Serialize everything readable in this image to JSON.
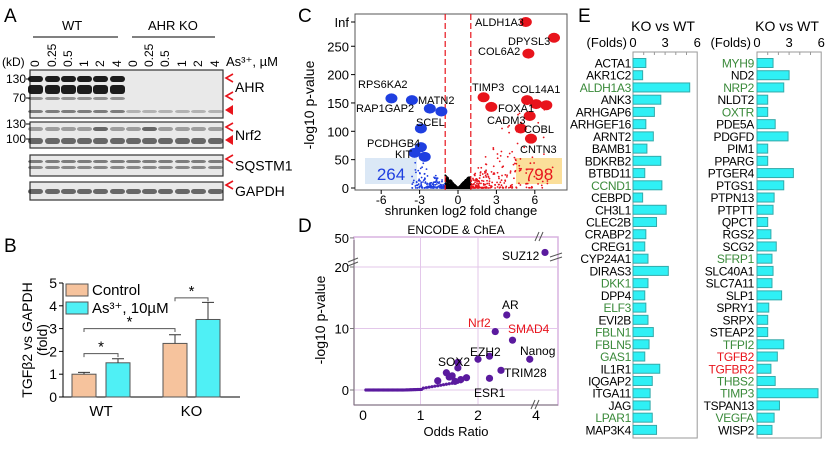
{
  "panels": {
    "a": "A",
    "b": "B",
    "c": "C",
    "d": "D",
    "e": "E"
  },
  "blot": {
    "groups": [
      "WT",
      "AHR KO"
    ],
    "lanes": [
      "0",
      "0.25",
      "0.5",
      "1",
      "2",
      "4",
      "0",
      "0.25",
      "0.5",
      "1",
      "2",
      "4"
    ],
    "treatment_label": "As³⁺, µM",
    "kd_label": "(kD)",
    "rows": [
      {
        "name": "AHR",
        "markers": [
          "130",
          "70"
        ]
      },
      {
        "name": "Nrf2",
        "markers": [
          "130",
          "100"
        ]
      },
      {
        "name": "SQSTM1",
        "markers": []
      },
      {
        "name": "GAPDH",
        "markers": []
      }
    ],
    "arrow_color": "#e8141c"
  },
  "chart_data": [
    {
      "id": "B",
      "type": "bar",
      "ylabel": "TGFβ2 vs GAPDH (fold)",
      "ylim": [
        0,
        5
      ],
      "yticks": [
        0,
        1,
        2,
        3,
        4,
        5
      ],
      "categories": [
        "WT",
        "KO"
      ],
      "series": [
        {
          "name": "Control",
          "color": "#f6c39d",
          "values": [
            1.0,
            2.35
          ],
          "errors": [
            0.08,
            0.38
          ]
        },
        {
          "name": "As³⁺, 10µM",
          "color": "#4ff0f5",
          "values": [
            1.5,
            3.4
          ],
          "errors": [
            0.18,
            0.75
          ]
        }
      ],
      "significance": [
        "*",
        "*",
        "*"
      ]
    },
    {
      "id": "C",
      "type": "scatter",
      "xlabel": "shrunken log2 fold change",
      "ylabel": "-log10 p-value",
      "xticks": [
        -6,
        -3,
        0,
        3,
        6
      ],
      "yticks": [
        "0",
        "50",
        "100",
        "150",
        "200",
        "250",
        "Inf"
      ],
      "thresholds": [
        -1,
        1
      ],
      "down_count": "264",
      "up_count": "798",
      "colors": {
        "down": "#1f3fe0",
        "up": "#e8141c",
        "ns": "#000000"
      },
      "labeled_points": [
        {
          "label": "ALDH1A3",
          "x": 5.3,
          "y": "Inf",
          "dir": "up"
        },
        {
          "label": "DPYSL3",
          "x": 7.5,
          "y": 265,
          "dir": "up"
        },
        {
          "label": "COL6A2",
          "x": 5.5,
          "y": 237,
          "dir": "up"
        },
        {
          "label": "TIMP3",
          "x": 2.0,
          "y": 160,
          "dir": "up"
        },
        {
          "label": "COL14A1",
          "x": 5.4,
          "y": 155,
          "dir": "up"
        },
        {
          "label": "FOXA1",
          "x": 2.6,
          "y": 143,
          "dir": "up"
        },
        {
          "label": "",
          "x": 6.1,
          "y": 148,
          "dir": "up"
        },
        {
          "label": "",
          "x": 6.9,
          "y": 146,
          "dir": "up"
        },
        {
          "label": "CADM3",
          "x": 5.6,
          "y": 127,
          "dir": "up"
        },
        {
          "label": "COBL",
          "x": 4.9,
          "y": 105,
          "dir": "up"
        },
        {
          "label": "CNTN3",
          "x": 5.7,
          "y": 87,
          "dir": "up"
        },
        {
          "label": "RPS6KA2",
          "x": -5.2,
          "y": 158,
          "dir": "down"
        },
        {
          "label": "RAP1GAP2",
          "x": -3.6,
          "y": 155,
          "dir": "down"
        },
        {
          "label": "MATN2",
          "x": -2.2,
          "y": 140,
          "dir": "down"
        },
        {
          "label": "",
          "x": -1.3,
          "y": 135,
          "dir": "down"
        },
        {
          "label": "SCEL",
          "x": -2.9,
          "y": 105,
          "dir": "down"
        },
        {
          "label": "PCDHGB4",
          "x": -2.9,
          "y": 72,
          "dir": "down"
        },
        {
          "label": "KIT",
          "x": -3.4,
          "y": 62,
          "dir": "down"
        },
        {
          "label": "",
          "x": -2.6,
          "y": 55,
          "dir": "down"
        }
      ]
    },
    {
      "id": "D",
      "type": "scatter",
      "title": "ENCODE & ChEA",
      "xlabel": "Odds Ratio",
      "ylabel": "-log10 p-value",
      "xticks": [
        "0",
        "1",
        "2",
        "4"
      ],
      "yticks": [
        "0",
        "10",
        "20",
        "50"
      ],
      "point_color": "#5a1a9e",
      "labeled_points": [
        {
          "label": "SUZ12",
          "x": 4.2,
          "y": 35,
          "highlight": false
        },
        {
          "label": "AR",
          "x": 2.5,
          "y": 12.2,
          "highlight": false
        },
        {
          "label": "Nrf2",
          "x": 2.3,
          "y": 9.5,
          "highlight": true
        },
        {
          "label": "SMAD4",
          "x": 2.6,
          "y": 8.1,
          "highlight": true
        },
        {
          "label": "EZH2",
          "x": 2.2,
          "y": 5.5,
          "highlight": false
        },
        {
          "label": "",
          "x": 2.0,
          "y": 5.0,
          "highlight": false
        },
        {
          "label": "SOX2",
          "x": 1.65,
          "y": 4.5,
          "highlight": false
        },
        {
          "label": "Nanog",
          "x": 2.9,
          "y": 5.0,
          "highlight": false
        },
        {
          "label": "TRIM28",
          "x": 2.4,
          "y": 3.2,
          "highlight": false
        },
        {
          "label": "ESR1",
          "x": 2.2,
          "y": 1.9,
          "highlight": false
        },
        {
          "label": "",
          "x": 1.45,
          "y": 2.8,
          "highlight": false
        },
        {
          "label": "",
          "x": 1.3,
          "y": 1.5,
          "highlight": false
        },
        {
          "label": "",
          "x": 1.5,
          "y": 2.1,
          "highlight": false
        },
        {
          "label": "",
          "x": 1.55,
          "y": 2.3,
          "highlight": false
        },
        {
          "label": "",
          "x": 1.65,
          "y": 3.6,
          "highlight": false
        },
        {
          "label": "",
          "x": 1.7,
          "y": 1.7,
          "highlight": false
        },
        {
          "label": "",
          "x": 1.8,
          "y": 2.0,
          "highlight": false
        },
        {
          "label": "",
          "x": 1.6,
          "y": 1.4,
          "highlight": false
        }
      ],
      "highlight_color": "#e8141c"
    },
    {
      "id": "E",
      "type": "bar",
      "orientation": "horizontal",
      "title": "KO vs WT",
      "xlabel": "(Folds)",
      "xlim": [
        0,
        6
      ],
      "xticks": [
        0,
        3,
        6
      ],
      "bar_color": "#2ff0f5",
      "label_colors": {
        "default": "#000000",
        "green": "#3a8a3a",
        "red": "#e8141c"
      },
      "columns": [
        [
          {
            "gene": "ACTA1",
            "value": 1.2,
            "c": "default"
          },
          {
            "gene": "AKR1C2",
            "value": 0.9,
            "c": "default"
          },
          {
            "gene": "ALDH1A3",
            "value": 5.3,
            "c": "green"
          },
          {
            "gene": "ANK3",
            "value": 2.6,
            "c": "default"
          },
          {
            "gene": "ARHGAP6",
            "value": 2.0,
            "c": "default"
          },
          {
            "gene": "ARHGEF16",
            "value": 1.2,
            "c": "default"
          },
          {
            "gene": "ARNT2",
            "value": 1.9,
            "c": "default"
          },
          {
            "gene": "BAMB1",
            "value": 1.3,
            "c": "default"
          },
          {
            "gene": "BDKRB2",
            "value": 2.6,
            "c": "default"
          },
          {
            "gene": "BTBD11",
            "value": 1.1,
            "c": "default"
          },
          {
            "gene": "CCND1",
            "value": 2.7,
            "c": "green"
          },
          {
            "gene": "CEBPD",
            "value": 0.9,
            "c": "default"
          },
          {
            "gene": "CH3L1",
            "value": 3.1,
            "c": "default"
          },
          {
            "gene": "CLEC2B",
            "value": 2.2,
            "c": "default"
          },
          {
            "gene": "CRABP2",
            "value": 1.2,
            "c": "default"
          },
          {
            "gene": "CREG1",
            "value": 1.1,
            "c": "default"
          },
          {
            "gene": "CYP24A1",
            "value": 1.4,
            "c": "default"
          },
          {
            "gene": "DIRAS3",
            "value": 3.3,
            "c": "default"
          },
          {
            "gene": "DKK1",
            "value": 1.4,
            "c": "green"
          },
          {
            "gene": "DPP4",
            "value": 1.1,
            "c": "default"
          },
          {
            "gene": "ELF3",
            "value": 1.2,
            "c": "green"
          },
          {
            "gene": "EVI2B",
            "value": 1.4,
            "c": "default"
          },
          {
            "gene": "FBLN1",
            "value": 1.9,
            "c": "green"
          },
          {
            "gene": "FBLN5",
            "value": 1.5,
            "c": "green"
          },
          {
            "gene": "GAS1",
            "value": 1.1,
            "c": "green"
          },
          {
            "gene": "IL1R1",
            "value": 2.5,
            "c": "default"
          },
          {
            "gene": "IQGAP2",
            "value": 1.8,
            "c": "default"
          },
          {
            "gene": "ITGA11",
            "value": 1.6,
            "c": "default"
          },
          {
            "gene": "JAG",
            "value": 1.6,
            "c": "default"
          },
          {
            "gene": "LPAR1",
            "value": 1.8,
            "c": "green"
          },
          {
            "gene": "MAP3K4",
            "value": 2.2,
            "c": "default"
          }
        ],
        [
          {
            "gene": "MYH9",
            "value": 1.5,
            "c": "green"
          },
          {
            "gene": "ND2",
            "value": 3.0,
            "c": "default"
          },
          {
            "gene": "NRP2",
            "value": 2.5,
            "c": "green"
          },
          {
            "gene": "NLDT2",
            "value": 1.0,
            "c": "default"
          },
          {
            "gene": "OXTR",
            "value": 1.0,
            "c": "green"
          },
          {
            "gene": "PDE5A",
            "value": 1.7,
            "c": "default"
          },
          {
            "gene": "PDGFD",
            "value": 2.9,
            "c": "default"
          },
          {
            "gene": "PIM1",
            "value": 1.0,
            "c": "default"
          },
          {
            "gene": "PPARG",
            "value": 1.0,
            "c": "default"
          },
          {
            "gene": "PTGER4",
            "value": 3.4,
            "c": "default"
          },
          {
            "gene": "PTGS1",
            "value": 2.5,
            "c": "default"
          },
          {
            "gene": "PTPN13",
            "value": 1.6,
            "c": "default"
          },
          {
            "gene": "PTPTT",
            "value": 1.5,
            "c": "default"
          },
          {
            "gene": "QPCT",
            "value": 1.0,
            "c": "default"
          },
          {
            "gene": "RGS2",
            "value": 1.3,
            "c": "default"
          },
          {
            "gene": "SCG2",
            "value": 1.8,
            "c": "default"
          },
          {
            "gene": "SFRP1",
            "value": 1.4,
            "c": "green"
          },
          {
            "gene": "SLC40A1",
            "value": 1.5,
            "c": "default"
          },
          {
            "gene": "SLC7A11",
            "value": 1.4,
            "c": "default"
          },
          {
            "gene": "SLP1",
            "value": 2.3,
            "c": "default"
          },
          {
            "gene": "SPRY1",
            "value": 1.1,
            "c": "default"
          },
          {
            "gene": "SRPX",
            "value": 1.0,
            "c": "default"
          },
          {
            "gene": "STEAP2",
            "value": 1.0,
            "c": "default"
          },
          {
            "gene": "TFPI2",
            "value": 2.5,
            "c": "green"
          },
          {
            "gene": "TGFB2",
            "value": 1.9,
            "c": "red"
          },
          {
            "gene": "TGFBR2",
            "value": 1.3,
            "c": "red"
          },
          {
            "gene": "THBS2",
            "value": 1.7,
            "c": "green"
          },
          {
            "gene": "TIMP3",
            "value": 5.7,
            "c": "green"
          },
          {
            "gene": "TSPAN13",
            "value": 2.1,
            "c": "default"
          },
          {
            "gene": "VEGFA",
            "value": 1.6,
            "c": "green"
          },
          {
            "gene": "WISP2",
            "value": 1.4,
            "c": "default"
          }
        ]
      ]
    }
  ]
}
